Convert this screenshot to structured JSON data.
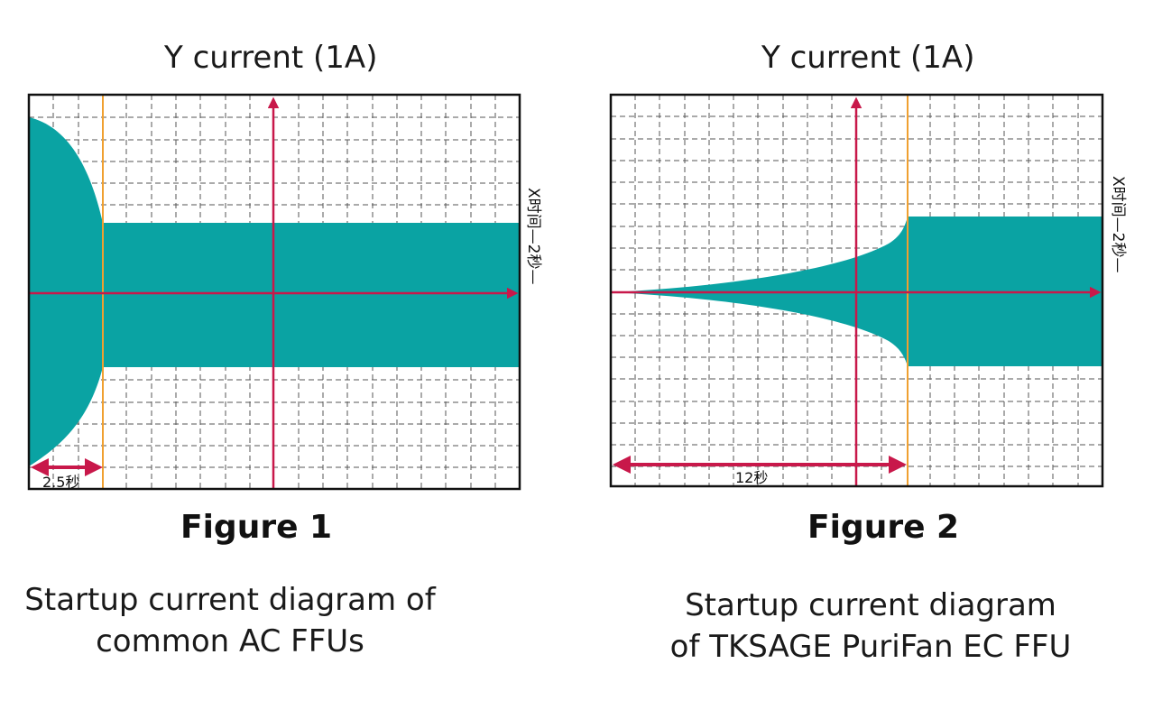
{
  "figures": [
    {
      "y_axis_label": "Y current (1A)",
      "x_axis_label": "X时间—2秒—",
      "duration_label": "2.5秒",
      "figure_label": "Figure 1",
      "caption_lines": [
        "Startup current diagram of",
        "common AC FFUs"
      ]
    },
    {
      "y_axis_label": "Y current (1A)",
      "x_axis_label": "X时间—2秒—",
      "duration_label": "12秒",
      "figure_label": "Figure 2",
      "caption_lines": [
        "Startup current diagram",
        "of TKSAGE PuriFan EC FFU"
      ]
    }
  ],
  "colors": {
    "current_fill": "#0aa3a3",
    "axis_arrows": "#c8184a",
    "marker_line": "#f0a030",
    "grid": "#555555"
  }
}
